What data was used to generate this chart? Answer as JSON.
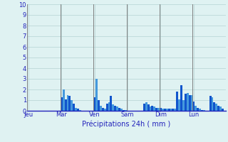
{
  "title": "Précipitations 24h ( mm )",
  "ylim": [
    0,
    10
  ],
  "yticks": [
    0,
    1,
    2,
    3,
    4,
    5,
    6,
    7,
    8,
    9,
    10
  ],
  "background_color": "#dff2f2",
  "bar_color_dark": "#1155cc",
  "bar_color_light": "#4499dd",
  "grid_color": "#aacccc",
  "day_line_color": "#808080",
  "day_labels": [
    "Jeu",
    "Mar",
    "Ven",
    "Sam",
    "Dim",
    "Lun"
  ],
  "day_positions": [
    0,
    16,
    32,
    48,
    64,
    80
  ],
  "n_bars": 96,
  "values": [
    0.0,
    0.0,
    0.0,
    0.0,
    0.0,
    0.0,
    0.0,
    0.0,
    0.0,
    0.0,
    0.0,
    0.0,
    0.0,
    0.0,
    0.0,
    0.0,
    1.3,
    2.0,
    1.1,
    1.5,
    1.4,
    1.0,
    0.7,
    0.3,
    0.2,
    0.1,
    0.0,
    0.0,
    0.0,
    0.0,
    0.0,
    0.0,
    1.3,
    3.0,
    1.0,
    0.5,
    0.3,
    0.2,
    0.7,
    0.8,
    1.4,
    0.6,
    0.5,
    0.4,
    0.3,
    0.2,
    0.1,
    0.1,
    0.0,
    0.0,
    0.0,
    0.0,
    0.0,
    0.0,
    0.0,
    0.0,
    0.7,
    0.8,
    0.6,
    0.4,
    0.5,
    0.4,
    0.3,
    0.3,
    0.3,
    0.2,
    0.2,
    0.2,
    0.2,
    0.2,
    0.2,
    0.2,
    1.8,
    1.1,
    2.4,
    1.0,
    1.6,
    1.7,
    1.5,
    1.5,
    0.9,
    0.5,
    0.3,
    0.2,
    0.1,
    0.1,
    0.0,
    0.0,
    1.4,
    1.3,
    0.8,
    0.7,
    0.5,
    0.4,
    0.2,
    0.0
  ],
  "title_fontsize": 7,
  "tick_fontsize": 6,
  "label_color": "#2222bb"
}
